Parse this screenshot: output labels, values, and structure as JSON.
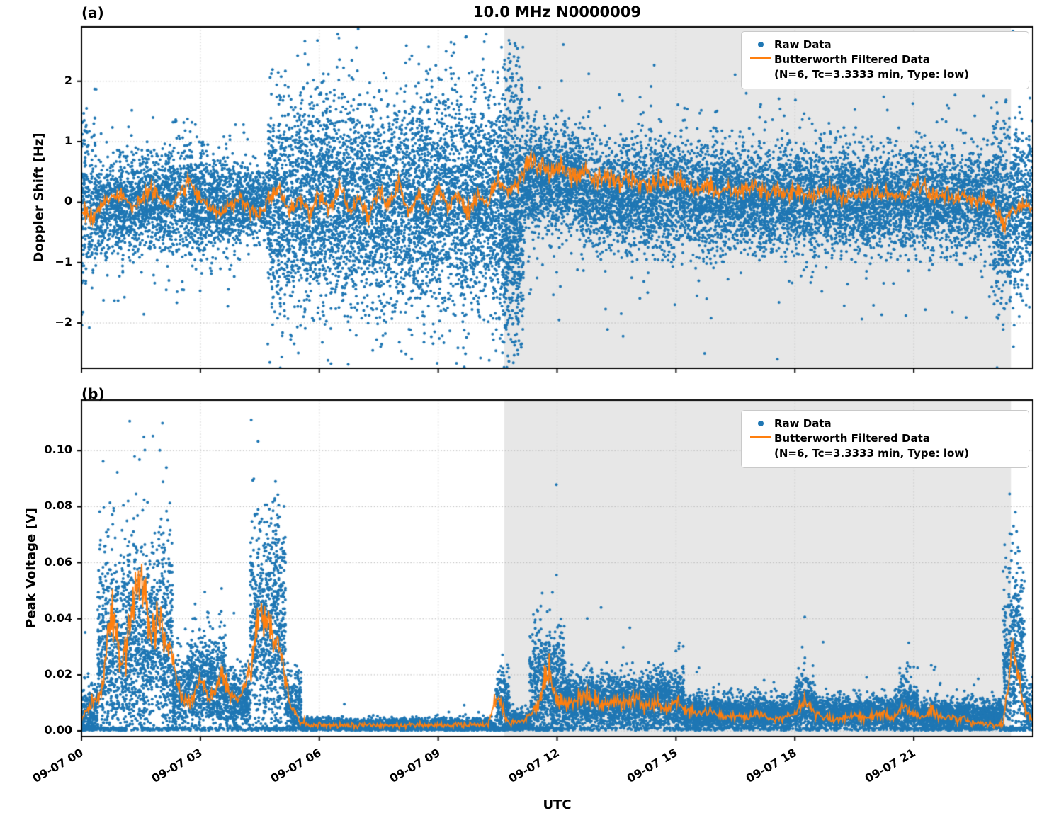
{
  "figure": {
    "title": "10.0 MHz N0000009",
    "xlabel": "UTC",
    "legend": {
      "raw": "Raw Data",
      "filtered_line1": "Butterworth Filtered Data",
      "filtered_line2": "(N=6, Tc=3.3333 min, Type: low)"
    },
    "colors": {
      "raw": "#1f77b4",
      "filtered": "#ff7f0e",
      "shade": "#e7e7e7",
      "grid": "#b8b8b8",
      "axis": "#000000",
      "background": "#ffffff"
    }
  },
  "chart_data": [
    {
      "type": "scatter",
      "panel": "a",
      "panel_label": "(a)",
      "title": "10.0 MHz N0000009",
      "ylabel": "Doppler Shift [Hz]",
      "ylim": [
        -2.75,
        2.9
      ],
      "yticks": [
        -2,
        -1,
        0,
        1,
        2
      ],
      "ytick_labels": [
        "−2",
        "−1",
        "0",
        "1",
        "2"
      ],
      "x_hours": [
        0,
        24
      ],
      "xtick_hours": [
        0,
        3,
        6,
        9,
        12,
        15,
        18,
        21
      ],
      "xtick_labels": [
        "09-07 00",
        "09-07 03",
        "09-07 06",
        "09-07 09",
        "09-07 12",
        "09-07 15",
        "09-07 18",
        "09-07 21"
      ],
      "show_xtick_labels": false,
      "clip_zero": false,
      "shade_hours": [
        10.67,
        23.45
      ],
      "legend_position": "upper right",
      "grid": "dotted",
      "series": [
        {
          "name": "Raw Data",
          "kind": "scatter",
          "segments": [
            [
              0.0,
              0.35,
              0.0,
              0.7,
              600,
              0.06
            ],
            [
              0.35,
              1.1,
              -0.05,
              0.4,
              700,
              0.04
            ],
            [
              1.1,
              2.1,
              0.0,
              0.38,
              700,
              0.04
            ],
            [
              2.1,
              3.1,
              0.05,
              0.45,
              700,
              0.04
            ],
            [
              3.1,
              4.0,
              -0.05,
              0.38,
              700,
              0.03
            ],
            [
              4.0,
              4.7,
              0.0,
              0.3,
              650,
              0.02
            ],
            [
              4.7,
              10.6,
              0.0,
              0.85,
              950,
              0.05
            ],
            [
              10.6,
              11.15,
              -0.1,
              1.05,
              1600,
              0.05
            ],
            [
              11.15,
              12.6,
              0.35,
              0.45,
              800,
              0.04
            ],
            [
              12.6,
              16.0,
              0.1,
              0.45,
              750,
              0.04
            ],
            [
              16.0,
              23.0,
              0.05,
              0.42,
              750,
              0.04
            ],
            [
              23.0,
              23.75,
              -0.15,
              0.75,
              900,
              0.05
            ],
            [
              23.75,
              24.0,
              0.0,
              0.55,
              700,
              0.04
            ]
          ]
        },
        {
          "name": "Butterworth Filtered Data (N=6, Tc=3.3333 min, Type: low)",
          "kind": "line",
          "t0": 0,
          "dt": 0.25,
          "noise_abs": 0.05,
          "noise_rel": 0.12,
          "values": [
            -0.15,
            -0.25,
            -0.05,
            0.1,
            0.15,
            -0.1,
            0.05,
            0.2,
            0.05,
            -0.1,
            0.15,
            0.3,
            0.1,
            -0.05,
            -0.2,
            -0.1,
            0.05,
            -0.15,
            -0.25,
            0.1,
            0.2,
            -0.15,
            0.1,
            -0.2,
            0.15,
            -0.1,
            0.25,
            -0.15,
            0.05,
            -0.25,
            0.2,
            -0.05,
            0.3,
            -0.2,
            0.1,
            -0.15,
            0.25,
            -0.1,
            0.15,
            -0.2,
            0.1,
            -0.05,
            0.4,
            0.15,
            0.3,
            0.62,
            0.66,
            0.52,
            0.56,
            0.46,
            0.42,
            0.46,
            0.36,
            0.42,
            0.32,
            0.36,
            0.3,
            0.26,
            0.36,
            0.3,
            0.4,
            0.26,
            0.2,
            0.3,
            0.2,
            0.26,
            0.16,
            0.22,
            0.26,
            0.16,
            0.2,
            0.12,
            0.2,
            0.15,
            0.1,
            0.2,
            0.15,
            0.05,
            0.15,
            0.1,
            0.2,
            0.1,
            0.15,
            0.05,
            0.3,
            0.2,
            0.1,
            0.15,
            0.05,
            0.1,
            0.0,
            0.05,
            -0.1,
            -0.35,
            -0.15,
            -0.05,
            -0.1
          ]
        }
      ]
    },
    {
      "type": "scatter",
      "panel": "b",
      "panel_label": "(b)",
      "ylabel": "Peak Voltage [V]",
      "ylim": [
        -0.002,
        0.118
      ],
      "yticks": [
        0.0,
        0.02,
        0.04,
        0.06,
        0.08,
        0.1
      ],
      "ytick_labels": [
        "0.00",
        "0.02",
        "0.04",
        "0.06",
        "0.08",
        "0.10"
      ],
      "x_hours": [
        0,
        24
      ],
      "xtick_hours": [
        0,
        3,
        6,
        9,
        12,
        15,
        18,
        21
      ],
      "xtick_labels": [
        "09-07 00",
        "09-07 03",
        "09-07 06",
        "09-07 09",
        "09-07 12",
        "09-07 15",
        "09-07 18",
        "09-07 21"
      ],
      "show_xtick_labels": true,
      "clip_zero": true,
      "shade_hours": [
        10.67,
        23.45
      ],
      "legend_position": "upper right",
      "grid": "dotted",
      "series": [
        {
          "name": "Raw Data",
          "kind": "scatter",
          "segments": [
            [
              0.0,
              0.4,
              0.006,
              0.005,
              700,
              0.05
            ],
            [
              0.4,
              1.15,
              0.025,
              0.02,
              900,
              0.08
            ],
            [
              1.15,
              2.3,
              0.03,
              0.018,
              900,
              0.08
            ],
            [
              2.3,
              2.65,
              0.012,
              0.007,
              700,
              0.04
            ],
            [
              2.65,
              3.65,
              0.016,
              0.009,
              800,
              0.05
            ],
            [
              3.65,
              4.25,
              0.01,
              0.006,
              700,
              0.04
            ],
            [
              4.25,
              5.15,
              0.035,
              0.022,
              1000,
              0.08
            ],
            [
              5.15,
              5.55,
              0.008,
              0.006,
              700,
              0.04
            ],
            [
              5.55,
              10.45,
              0.002,
              0.0012,
              600,
              0.01
            ],
            [
              10.45,
              10.8,
              0.008,
              0.007,
              800,
              0.06
            ],
            [
              10.8,
              11.3,
              0.003,
              0.002,
              700,
              0.03
            ],
            [
              11.3,
              12.2,
              0.014,
              0.01,
              900,
              0.08
            ],
            [
              12.2,
              13.4,
              0.01,
              0.005,
              800,
              0.05
            ],
            [
              13.4,
              15.2,
              0.01,
              0.005,
              800,
              0.04
            ],
            [
              15.2,
              18.0,
              0.006,
              0.003,
              750,
              0.04
            ],
            [
              18.0,
              18.5,
              0.009,
              0.005,
              800,
              0.05
            ],
            [
              18.5,
              20.6,
              0.006,
              0.003,
              750,
              0.04
            ],
            [
              20.6,
              21.1,
              0.008,
              0.005,
              800,
              0.05
            ],
            [
              21.1,
              23.25,
              0.005,
              0.003,
              750,
              0.04
            ],
            [
              23.25,
              23.8,
              0.025,
              0.018,
              1000,
              0.08
            ],
            [
              23.8,
              24.0,
              0.007,
              0.005,
              700,
              0.05
            ]
          ]
        },
        {
          "name": "Butterworth Filtered Data (N=6, Tc=3.3333 min, Type: low)",
          "kind": "line",
          "t0": 0,
          "dt": 0.25,
          "noise_abs": 0.0003,
          "noise_rel": 0.1,
          "values": [
            0.004,
            0.01,
            0.014,
            0.046,
            0.022,
            0.038,
            0.056,
            0.034,
            0.04,
            0.028,
            0.012,
            0.01,
            0.018,
            0.012,
            0.02,
            0.013,
            0.011,
            0.022,
            0.044,
            0.04,
            0.028,
            0.01,
            0.003,
            0.002,
            0.002,
            0.002,
            0.002,
            0.002,
            0.002,
            0.002,
            0.002,
            0.002,
            0.002,
            0.002,
            0.002,
            0.002,
            0.002,
            0.002,
            0.002,
            0.002,
            0.002,
            0.002,
            0.013,
            0.003,
            0.003,
            0.004,
            0.009,
            0.022,
            0.011,
            0.009,
            0.012,
            0.013,
            0.011,
            0.009,
            0.011,
            0.009,
            0.012,
            0.008,
            0.01,
            0.007,
            0.011,
            0.008,
            0.006,
            0.007,
            0.006,
            0.005,
            0.006,
            0.005,
            0.006,
            0.005,
            0.004,
            0.005,
            0.006,
            0.011,
            0.006,
            0.005,
            0.004,
            0.005,
            0.006,
            0.004,
            0.005,
            0.006,
            0.004,
            0.009,
            0.006,
            0.005,
            0.008,
            0.004,
            0.005,
            0.004,
            0.003,
            0.003,
            0.002,
            0.002,
            0.032,
            0.01,
            0.004
          ]
        }
      ]
    }
  ]
}
